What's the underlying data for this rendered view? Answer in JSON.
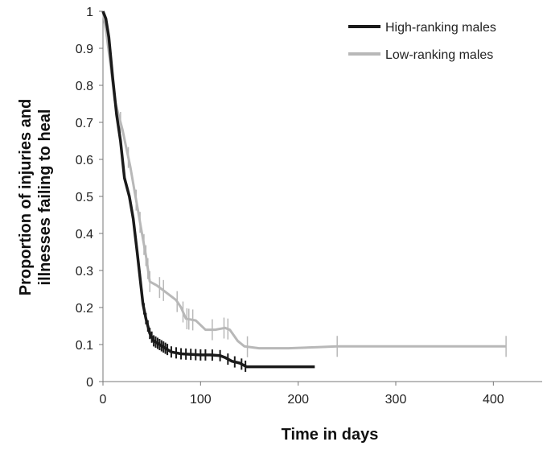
{
  "chart_data": {
    "type": "line",
    "title": "",
    "xlabel": "Time in days",
    "ylabel_lines": [
      "Proportion of injuries and",
      "illnesses failing to heal"
    ],
    "xlim": [
      0,
      450
    ],
    "ylim": [
      0,
      1
    ],
    "x_ticks": [
      0,
      100,
      200,
      300,
      400
    ],
    "x_tick_labels": [
      "0",
      "100",
      "200",
      "300",
      "400"
    ],
    "y_ticks": [
      0,
      0.1,
      0.2,
      0.3,
      0.4,
      0.5,
      0.6,
      0.7,
      0.8,
      0.9,
      1
    ],
    "y_tick_labels": [
      "0",
      "0.1",
      "0.2",
      "0.3",
      "0.4",
      "0.5",
      "0.6",
      "0.7",
      "0.8",
      "0.9",
      "1"
    ],
    "grid": false,
    "legend_position": "top-right",
    "series": [
      {
        "name": "High-ranking males",
        "color": "#1a1a1a",
        "points": [
          [
            0,
            1
          ],
          [
            3,
            0.98
          ],
          [
            6,
            0.93
          ],
          [
            10,
            0.82
          ],
          [
            14,
            0.72
          ],
          [
            18,
            0.65
          ],
          [
            22,
            0.55
          ],
          [
            27,
            0.5
          ],
          [
            31,
            0.44
          ],
          [
            35,
            0.35
          ],
          [
            38,
            0.28
          ],
          [
            41,
            0.21
          ],
          [
            44,
            0.17
          ],
          [
            48,
            0.13
          ],
          [
            52,
            0.11
          ],
          [
            58,
            0.1
          ],
          [
            64,
            0.09
          ],
          [
            70,
            0.08
          ],
          [
            80,
            0.075
          ],
          [
            100,
            0.072
          ],
          [
            110,
            0.072
          ],
          [
            120,
            0.07
          ],
          [
            125,
            0.065
          ],
          [
            132,
            0.055
          ],
          [
            140,
            0.05
          ],
          [
            147,
            0.04
          ],
          [
            160,
            0.04
          ],
          [
            190,
            0.04
          ],
          [
            217,
            0.04
          ]
        ],
        "censor_x": [
          40,
          42,
          44,
          46,
          48,
          50,
          52,
          54,
          56,
          58,
          60,
          62,
          64,
          66,
          70,
          75,
          80,
          85,
          90,
          95,
          100,
          105,
          112,
          120,
          128,
          135,
          142,
          146
        ]
      },
      {
        "name": "Low-ranking males",
        "color": "#b8b8b8",
        "points": [
          [
            0,
            1
          ],
          [
            4,
            0.93
          ],
          [
            8,
            0.85
          ],
          [
            12,
            0.76
          ],
          [
            16,
            0.72
          ],
          [
            20,
            0.68
          ],
          [
            24,
            0.63
          ],
          [
            28,
            0.58
          ],
          [
            32,
            0.52
          ],
          [
            36,
            0.46
          ],
          [
            40,
            0.4
          ],
          [
            44,
            0.34
          ],
          [
            48,
            0.27
          ],
          [
            55,
            0.26
          ],
          [
            65,
            0.24
          ],
          [
            75,
            0.22
          ],
          [
            80,
            0.2
          ],
          [
            85,
            0.17
          ],
          [
            95,
            0.165
          ],
          [
            105,
            0.14
          ],
          [
            115,
            0.14
          ],
          [
            125,
            0.145
          ],
          [
            130,
            0.14
          ],
          [
            138,
            0.11
          ],
          [
            145,
            0.095
          ],
          [
            160,
            0.09
          ],
          [
            190,
            0.09
          ],
          [
            220,
            0.093
          ],
          [
            240,
            0.095
          ],
          [
            300,
            0.095
          ],
          [
            413,
            0.095
          ]
        ],
        "censor_x": [
          18,
          26,
          34,
          38,
          42,
          44,
          46,
          48,
          58,
          62,
          76,
          82,
          86,
          88,
          92,
          112,
          124,
          128,
          148,
          240,
          413
        ]
      }
    ]
  }
}
